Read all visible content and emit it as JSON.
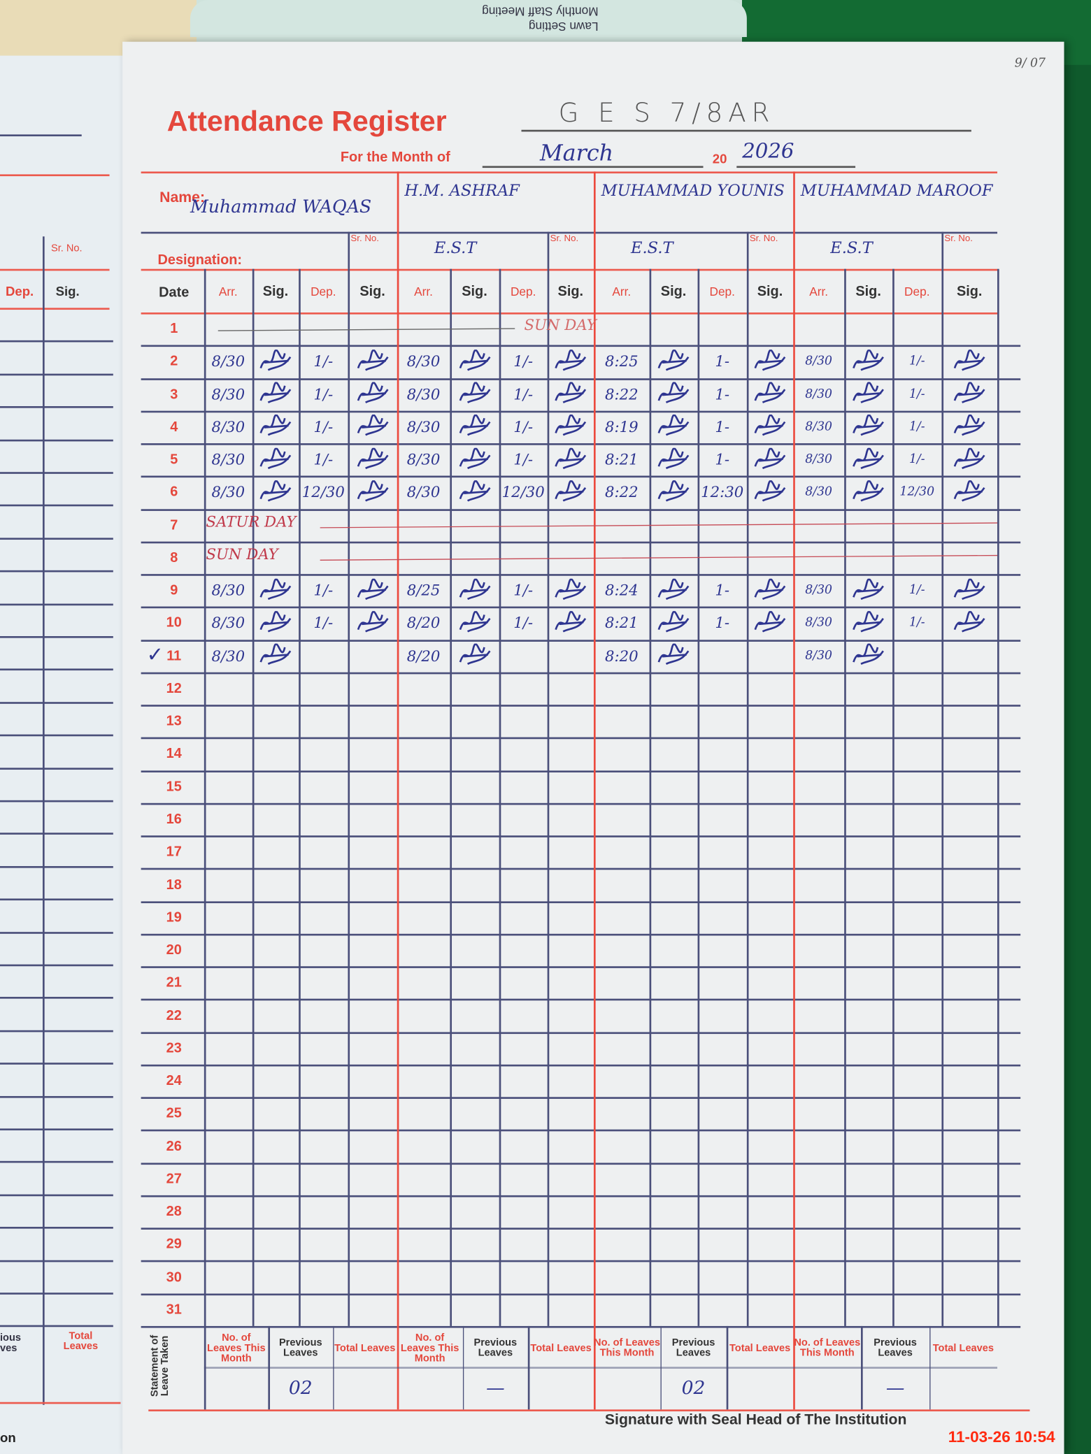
{
  "background_note": {
    "lines": [
      "Monthly Staff Meeting",
      "Lawn Setting"
    ]
  },
  "left_page": {
    "sr_no": "Sr. No.",
    "dep": "Dep.",
    "sig": "Sig.",
    "previous_partial": "ious\nves",
    "total_leaves": "Total Leaves",
    "bottom_partial": "on"
  },
  "corner_note": "9/ 07",
  "header": {
    "title": "Attendance Register",
    "school": "G E S  7/8AR",
    "month_label": "For the Month of",
    "month": "March",
    "year_prefix": "20",
    "year": "2026"
  },
  "labels": {
    "name": "Name:",
    "designation": "Designation:",
    "sr_no": "Sr. No.",
    "date": "Date",
    "arr": "Arr.",
    "sig": "Sig.",
    "dep": "Dep.",
    "statement": "Statement of Leave Taken",
    "leaves_this_month": "No. of Leaves This Month",
    "previous_leaves": "Previous Leaves",
    "total_leaves": "Total Leaves"
  },
  "teachers": [
    {
      "name": "Muhammad WAQAS",
      "designation": ""
    },
    {
      "name": "H.M. ASHRAF",
      "designation": "E.S.T"
    },
    {
      "name": "MUHAMMAD YOUNIS",
      "designation": "E.S.T"
    },
    {
      "name": "MUHAMMAD MAROOF",
      "designation": "E.S.T"
    }
  ],
  "dates": [
    "1",
    "2",
    "3",
    "4",
    "5",
    "6",
    "7",
    "8",
    "9",
    "10",
    "11",
    "12",
    "13",
    "14",
    "15",
    "16",
    "17",
    "18",
    "19",
    "20",
    "21",
    "22",
    "23",
    "24",
    "25",
    "26",
    "27",
    "28",
    "29",
    "30",
    "31"
  ],
  "row_notes": {
    "1": "SUN DAY",
    "7": "SATUR DAY",
    "8": "SUN DAY"
  },
  "checked_date": "11",
  "entries": [
    {
      "date": "2",
      "t": [
        [
          "8/30",
          "1/-"
        ],
        [
          "8/30",
          "1/-"
        ],
        [
          "8:25",
          "1-"
        ],
        [
          "8/30",
          "1/-"
        ]
      ]
    },
    {
      "date": "3",
      "t": [
        [
          "8/30",
          "1/-"
        ],
        [
          "8/30",
          "1/-"
        ],
        [
          "8:22",
          "1-"
        ],
        [
          "8/30",
          "1/-"
        ]
      ]
    },
    {
      "date": "4",
      "t": [
        [
          "8/30",
          "1/-"
        ],
        [
          "8/30",
          "1/-"
        ],
        [
          "8:19",
          "1-"
        ],
        [
          "8/30",
          "1/-"
        ]
      ]
    },
    {
      "date": "5",
      "t": [
        [
          "8/30",
          "1/-"
        ],
        [
          "8/30",
          "1/-"
        ],
        [
          "8:21",
          "1-"
        ],
        [
          "8/30",
          "1/-"
        ]
      ]
    },
    {
      "date": "6",
      "t": [
        [
          "8/30",
          "12/30"
        ],
        [
          "8/30",
          "12/30"
        ],
        [
          "8:22",
          "12:30"
        ],
        [
          "8/30",
          "12/30"
        ]
      ]
    },
    {
      "date": "9",
      "t": [
        [
          "8/30",
          "1/-"
        ],
        [
          "8/25",
          "1/-"
        ],
        [
          "8:24",
          "1-"
        ],
        [
          "8/30",
          "1/-"
        ]
      ]
    },
    {
      "date": "10",
      "t": [
        [
          "8/30",
          "1/-"
        ],
        [
          "8/20",
          "1/-"
        ],
        [
          "8:21",
          "1-"
        ],
        [
          "8/30",
          "1/-"
        ]
      ]
    },
    {
      "date": "11",
      "t": [
        [
          "8/30",
          ""
        ],
        [
          "8/20",
          ""
        ],
        [
          "8:20",
          ""
        ],
        [
          "8/30",
          ""
        ]
      ]
    }
  ],
  "leaves": [
    {
      "this_month": "",
      "previous": "02",
      "total": ""
    },
    {
      "this_month": "",
      "previous": "—",
      "total": ""
    },
    {
      "this_month": "",
      "previous": "02",
      "total": ""
    },
    {
      "this_month": "",
      "previous": "—",
      "total": ""
    }
  ],
  "footer": {
    "signature_label": "Signature with Seal Head of The Institution"
  },
  "timestamp": "11-03-26  10:54",
  "colors": {
    "print_red": "#e4473c",
    "grid_blue": "#4a4f7a",
    "ink": "#2e3590",
    "paper": "#eef0f1"
  }
}
